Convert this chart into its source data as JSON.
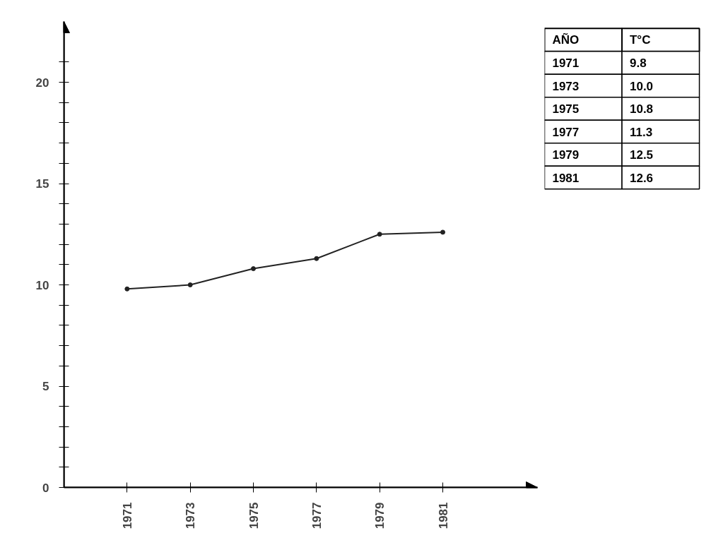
{
  "chart_data": {
    "type": "line",
    "annotations": [
      "AÑO",
      "T°C",
      "1971",
      "9.8",
      "1973",
      "10.0",
      "1975",
      "10.8",
      "1977",
      "11.3",
      "1979",
      "12.5",
      "1981",
      "12.6"
    ],
    "x": [
      1971,
      1973,
      1975,
      1977,
      1979,
      1981
    ],
    "values": [
      9.8,
      10.0,
      10.8,
      11.3,
      12.5,
      12.6
    ],
    "color": "#222222",
    "marker": "circle",
    "line_style": "solid",
    "xlim": [
      1969,
      1984
    ],
    "xticks": [
      1971,
      1973,
      1975,
      1977,
      1979,
      1981
    ],
    "ylim": [
      0,
      23
    ],
    "yticks": [
      0,
      {
        "value": 1,
        "label": null
      },
      {
        "value": 2,
        "label": null
      },
      {
        "value": 3,
        "label": null
      },
      {
        "value": 4,
        "label": null
      },
      5,
      {
        "value": 6,
        "label": null
      },
      {
        "value": 7,
        "label": null
      },
      {
        "value": 8,
        "label": null
      },
      {
        "value": 9,
        "label": null
      },
      10,
      {
        "value": 11,
        "label": null
      },
      {
        "value": 12,
        "label": null
      },
      {
        "value": 13,
        "label": null
      },
      {
        "value": 14,
        "label": null
      },
      15,
      {
        "value": 16,
        "label": null
      },
      {
        "value": 17,
        "label": null
      },
      {
        "value": 18,
        "label": null
      },
      {
        "value": 19,
        "label": null
      },
      20,
      {
        "value": 21,
        "label": null
      }
    ]
  }
}
